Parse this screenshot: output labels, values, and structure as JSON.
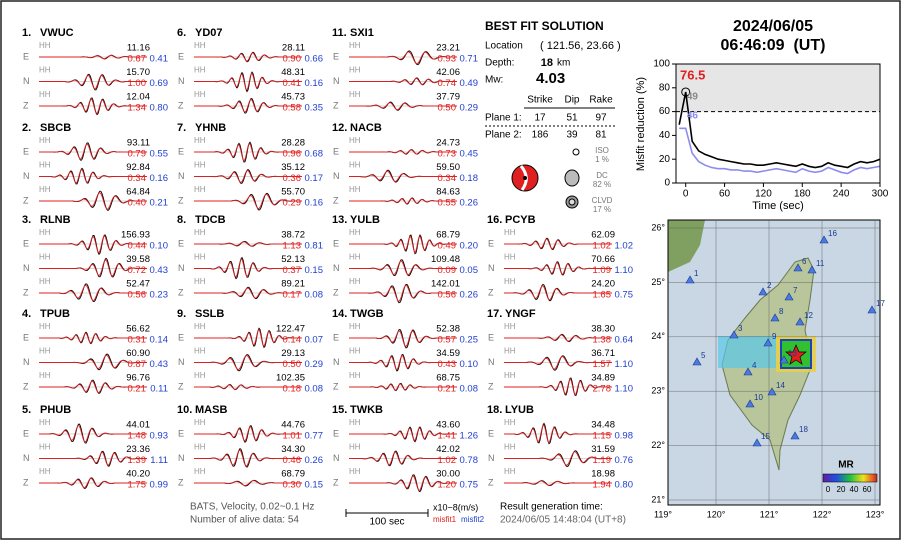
{
  "stations": [
    {
      "num": "1.",
      "name": "VWUC",
      "comps": [
        {
          "c": "E",
          "inst": "HH",
          "amp": "11.16",
          "m1": "0.67",
          "m2": "0.41"
        },
        {
          "c": "N",
          "inst": "HH",
          "amp": "15.70",
          "m1": "1.00",
          "m2": "0.69"
        },
        {
          "c": "Z",
          "inst": "HH",
          "amp": "12.04",
          "m1": "1.34",
          "m2": "0.80"
        }
      ]
    },
    {
      "num": "2.",
      "name": "SBCB",
      "comps": [
        {
          "c": "E",
          "inst": "HH",
          "amp": "93.11",
          "m1": "0.79",
          "m2": "0.55"
        },
        {
          "c": "N",
          "inst": "HH",
          "amp": "92.84",
          "m1": "0.34",
          "m2": "0.16"
        },
        {
          "c": "Z",
          "inst": "HH",
          "amp": "64.84",
          "m1": "0.40",
          "m2": "0.21"
        }
      ]
    },
    {
      "num": "3.",
      "name": "RLNB",
      "comps": [
        {
          "c": "E",
          "inst": "HH",
          "amp": "156.93",
          "m1": "0.44",
          "m2": "0.10"
        },
        {
          "c": "N",
          "inst": "HH",
          "amp": "39.58",
          "m1": "0.72",
          "m2": "0.43"
        },
        {
          "c": "Z",
          "inst": "HH",
          "amp": "52.47",
          "m1": "0.56",
          "m2": "0.23"
        }
      ]
    },
    {
      "num": "4.",
      "name": "TPUB",
      "comps": [
        {
          "c": "E",
          "inst": "HH",
          "amp": "56.62",
          "m1": "0.31",
          "m2": "0.14"
        },
        {
          "c": "N",
          "inst": "HH",
          "amp": "60.90",
          "m1": "0.87",
          "m2": "0.43"
        },
        {
          "c": "Z",
          "inst": "HH",
          "amp": "96.76",
          "m1": "0.21",
          "m2": "0.11"
        }
      ]
    },
    {
      "num": "5.",
      "name": "PHUB",
      "comps": [
        {
          "c": "E",
          "inst": "HH",
          "amp": "44.01",
          "m1": "1.48",
          "m2": "0.93"
        },
        {
          "c": "N",
          "inst": "HH",
          "amp": "23.36",
          "m1": "1.39",
          "m2": "1.11"
        },
        {
          "c": "Z",
          "inst": "HH",
          "amp": "40.20",
          "m1": "1.75",
          "m2": "0.99"
        }
      ]
    },
    {
      "num": "6.",
      "name": "YD07",
      "comps": [
        {
          "c": "E",
          "inst": "HH",
          "amp": "28.11",
          "m1": "0.90",
          "m2": "0.66"
        },
        {
          "c": "N",
          "inst": "HH",
          "amp": "48.31",
          "m1": "0.41",
          "m2": "0.16"
        },
        {
          "c": "Z",
          "inst": "HH",
          "amp": "45.73",
          "m1": "0.58",
          "m2": "0.35"
        }
      ]
    },
    {
      "num": "7.",
      "name": "YHNB",
      "comps": [
        {
          "c": "E",
          "inst": "HH",
          "amp": "28.28",
          "m1": "0.96",
          "m2": "0.68"
        },
        {
          "c": "N",
          "inst": "HH",
          "amp": "35.12",
          "m1": "0.36",
          "m2": "0.17"
        },
        {
          "c": "Z",
          "inst": "HH",
          "amp": "55.70",
          "m1": "0.29",
          "m2": "0.16"
        }
      ]
    },
    {
      "num": "8.",
      "name": "TDCB",
      "comps": [
        {
          "c": "E",
          "inst": "HH",
          "amp": "38.72",
          "m1": "1.13",
          "m2": "0.81"
        },
        {
          "c": "N",
          "inst": "HH",
          "amp": "52.13",
          "m1": "0.37",
          "m2": "0.15"
        },
        {
          "c": "Z",
          "inst": "HH",
          "amp": "89.21",
          "m1": "0.17",
          "m2": "0.08"
        }
      ]
    },
    {
      "num": "9.",
      "name": "SSLB",
      "comps": [
        {
          "c": "E",
          "inst": "HH",
          "amp": "122.47",
          "m1": "0.14",
          "m2": "0.07"
        },
        {
          "c": "N",
          "inst": "HH",
          "amp": "29.13",
          "m1": "0.50",
          "m2": "0.29"
        },
        {
          "c": "Z",
          "inst": "HH",
          "amp": "102.35",
          "m1": "0.18",
          "m2": "0.08"
        }
      ]
    },
    {
      "num": "10.",
      "name": "MASB",
      "comps": [
        {
          "c": "E",
          "inst": "HH",
          "amp": "44.76",
          "m1": "1.01",
          "m2": "0.77"
        },
        {
          "c": "N",
          "inst": "HH",
          "amp": "34.30",
          "m1": "0.46",
          "m2": "0.26"
        },
        {
          "c": "Z",
          "inst": "HH",
          "amp": "68.79",
          "m1": "0.30",
          "m2": "0.15"
        }
      ]
    },
    {
      "num": "11.",
      "name": "SXI1",
      "comps": [
        {
          "c": "E",
          "inst": "HH",
          "amp": "23.21",
          "m1": "0.93",
          "m2": "0.71"
        },
        {
          "c": "N",
          "inst": "HH",
          "amp": "42.06",
          "m1": "0.74",
          "m2": "0.49"
        },
        {
          "c": "Z",
          "inst": "HH",
          "amp": "37.79",
          "m1": "0.50",
          "m2": "0.29"
        }
      ]
    },
    {
      "num": "12.",
      "name": "NACB",
      "comps": [
        {
          "c": "E",
          "inst": "HH",
          "amp": "24.73",
          "m1": "0.73",
          "m2": "0.45"
        },
        {
          "c": "N",
          "inst": "HH",
          "amp": "59.50",
          "m1": "0.34",
          "m2": "0.18"
        },
        {
          "c": "Z",
          "inst": "HH",
          "amp": "84.63",
          "m1": "0.55",
          "m2": "0.26"
        }
      ]
    },
    {
      "num": "13.",
      "name": "YULB",
      "comps": [
        {
          "c": "E",
          "inst": "HH",
          "amp": "68.79",
          "m1": "0.49",
          "m2": "0.20"
        },
        {
          "c": "N",
          "inst": "HH",
          "amp": "109.48",
          "m1": "0.09",
          "m2": "0.05"
        },
        {
          "c": "Z",
          "inst": "HH",
          "amp": "142.01",
          "m1": "0.56",
          "m2": "0.26"
        }
      ]
    },
    {
      "num": "14.",
      "name": "TWGB",
      "comps": [
        {
          "c": "E",
          "inst": "HH",
          "amp": "52.38",
          "m1": "0.57",
          "m2": "0.25"
        },
        {
          "c": "N",
          "inst": "HH",
          "amp": "34.59",
          "m1": "0.43",
          "m2": "0.10"
        },
        {
          "c": "Z",
          "inst": "HH",
          "amp": "68.75",
          "m1": "0.21",
          "m2": "0.08"
        }
      ]
    },
    {
      "num": "15.",
      "name": "TWKB",
      "comps": [
        {
          "c": "E",
          "inst": "HH",
          "amp": "43.60",
          "m1": "1.41",
          "m2": "1.26"
        },
        {
          "c": "N",
          "inst": "HH",
          "amp": "42.02",
          "m1": "1.02",
          "m2": "0.78"
        },
        {
          "c": "Z",
          "inst": "HH",
          "amp": "30.00",
          "m1": "1.20",
          "m2": "0.75"
        }
      ]
    },
    {
      "num": "16.",
      "name": "PCYB",
      "comps": [
        {
          "c": "E",
          "inst": "HH",
          "amp": "62.09",
          "m1": "1.02",
          "m2": "1.02"
        },
        {
          "c": "N",
          "inst": "HH",
          "amp": "70.66",
          "m1": "1.09",
          "m2": "1.10"
        },
        {
          "c": "Z",
          "inst": "HH",
          "amp": "24.20",
          "m1": "1.65",
          "m2": "0.75"
        }
      ]
    },
    {
      "num": "17.",
      "name": "YNGF",
      "comps": [
        {
          "c": "E",
          "inst": "HH",
          "amp": "38.30",
          "m1": "1.38",
          "m2": "0.64"
        },
        {
          "c": "N",
          "inst": "HH",
          "amp": "36.71",
          "m1": "1.57",
          "m2": "1.10"
        },
        {
          "c": "Z",
          "inst": "HH",
          "amp": "34.89",
          "m1": "2.78",
          "m2": "1.10"
        }
      ]
    },
    {
      "num": "18.",
      "name": "LYUB",
      "comps": [
        {
          "c": "E",
          "inst": "HH",
          "amp": "34.48",
          "m1": "1.15",
          "m2": "0.98"
        },
        {
          "c": "N",
          "inst": "HH",
          "amp": "31.59",
          "m1": "1.19",
          "m2": "0.76"
        },
        {
          "c": "Z",
          "inst": "HH",
          "amp": "18.98",
          "m1": "1.94",
          "m2": "0.80"
        }
      ]
    }
  ],
  "solution": {
    "title": "BEST FIT SOLUTION",
    "location_label": "Location",
    "location": "( 121.56, 23.66 )",
    "depth_label": "Depth:",
    "depth": "18",
    "depth_unit": "km",
    "mw_label": "Mw:",
    "mw": "4.03",
    "headers": [
      "Strike",
      "Dip",
      "Rake"
    ],
    "planes": [
      {
        "label": "Plane 1:",
        "values": [
          "17",
          "51",
          "97"
        ]
      },
      {
        "label": "Plane 2:",
        "values": [
          "186",
          "39",
          "81"
        ]
      }
    ],
    "components": [
      {
        "name": "ISO",
        "pct": "1 %"
      },
      {
        "name": "DC",
        "pct": "82 %"
      },
      {
        "name": "CLVD",
        "pct": "17 %"
      }
    ]
  },
  "header": {
    "date": "2024/06/05",
    "time": "06:46:09  (UT)"
  },
  "chart_data": {
    "type": "line",
    "y_label": "Misfit reduction (%)",
    "x_label": "Time (sec)",
    "x": [
      -10,
      0,
      10,
      20,
      30,
      40,
      50,
      60,
      70,
      80,
      90,
      100,
      110,
      120,
      130,
      140,
      150,
      160,
      170,
      180,
      190,
      200,
      210,
      220,
      230,
      240,
      250,
      260,
      270,
      280,
      290,
      300
    ],
    "series": [
      {
        "color": "#000000",
        "values": [
          49,
          76.5,
          35,
          27,
          24,
          22,
          20,
          19,
          18,
          17,
          16,
          16,
          15,
          15,
          16,
          17,
          16,
          15,
          14,
          16,
          14,
          13,
          14,
          17,
          15,
          14,
          13,
          16,
          18,
          17,
          18,
          20
        ]
      },
      {
        "color": "#8c8cf0",
        "values": [
          46,
          46,
          25,
          18,
          15,
          13,
          12,
          12,
          11,
          11,
          10,
          10,
          9,
          10,
          11,
          12,
          11,
          10,
          9,
          12,
          10,
          9,
          10,
          13,
          11,
          9,
          8,
          11,
          13,
          12,
          13,
          14
        ]
      }
    ],
    "annotations": [
      {
        "text": "76.5",
        "color": "#e02020"
      },
      {
        "text": "49",
        "color": "#888888"
      },
      {
        "text": "46",
        "color": "#8c8cf0"
      }
    ],
    "hline": 60,
    "xlim": [
      -15,
      300
    ],
    "ylim": [
      0,
      100
    ],
    "xticks": [
      0,
      60,
      120,
      180,
      240,
      300
    ],
    "yticks": [
      0,
      20,
      40,
      60,
      80,
      100
    ]
  },
  "map": {
    "lon_labels": [
      "119°",
      "120°",
      "121°",
      "122°",
      "123°"
    ],
    "lat_labels": [
      "26°",
      "25°",
      "24°",
      "23°",
      "22°",
      "21°"
    ],
    "station_labels": [
      "1",
      "2",
      "3",
      "4",
      "5",
      "6",
      "7",
      "8",
      "9",
      "10",
      "11",
      "12",
      "13",
      "14",
      "15",
      "16",
      "17",
      "18"
    ],
    "colorbar_title": "MR",
    "colorbar_labels": [
      "0",
      "20",
      "40",
      "60"
    ]
  },
  "footer": {
    "info1": "BATS, Velocity, 0.02~0.1 Hz",
    "info2": "Number of alive data: 54",
    "scale": "100 sec",
    "unit": "x10−8(m/s)",
    "misfit1": "misfit1",
    "misfit2": "misfit2",
    "gen_label": "Result generation time:",
    "gen_time": "2024/06/05 14:48:04 (UT+8)"
  }
}
